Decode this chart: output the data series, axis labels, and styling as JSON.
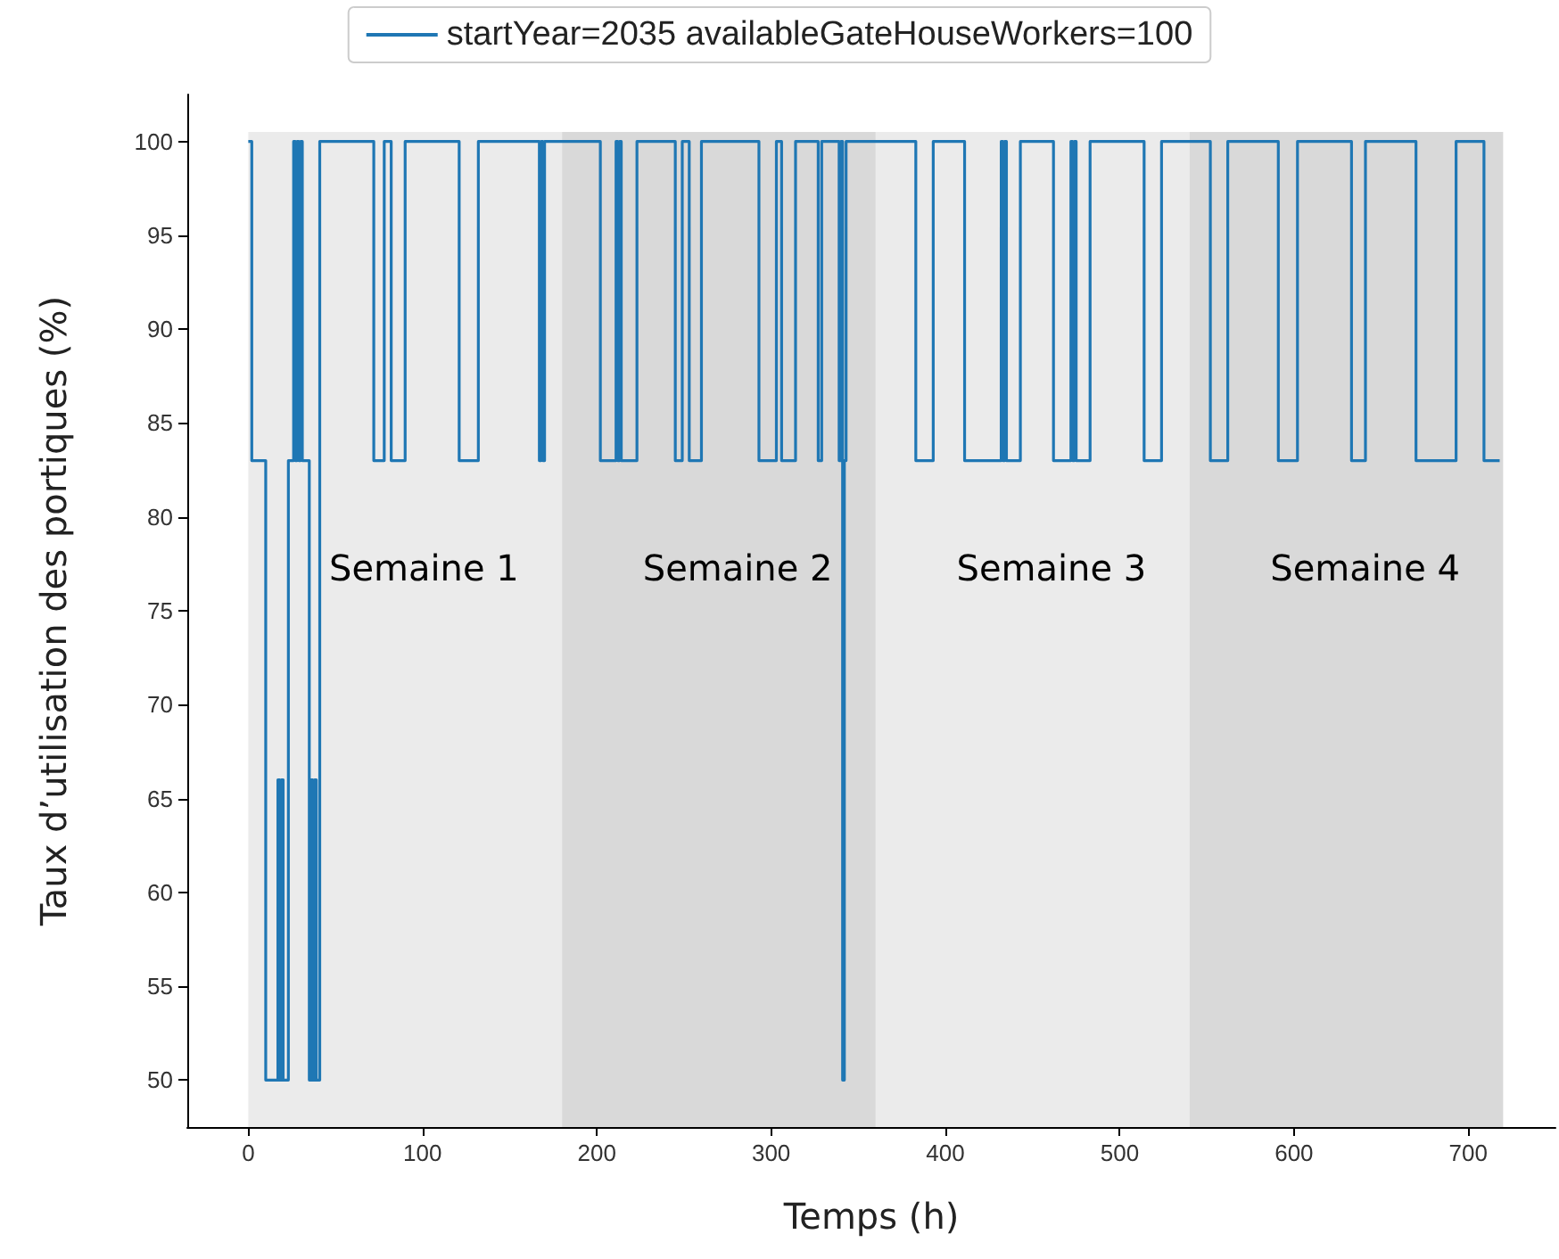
{
  "chart_data": {
    "type": "step",
    "xlabel": "Temps (h)",
    "ylabel": "Taux d’utilisation des portiques (%)",
    "series": [
      {
        "name": "startYear=2035 availableGateHouseWorkers=100",
        "color": "#1f77b4",
        "x": [
          0,
          2,
          10,
          17,
          18,
          19,
          20,
          23,
          26,
          27,
          28,
          29,
          30,
          31,
          35,
          36,
          37,
          38,
          39,
          41,
          72,
          78,
          82,
          90,
          121,
          132,
          167,
          168,
          169,
          170,
          202,
          211,
          212,
          213,
          214,
          223,
          245,
          249,
          253,
          260,
          293,
          303,
          306,
          314,
          327,
          329,
          339,
          340,
          341,
          342,
          343,
          383,
          393,
          411,
          432,
          433,
          434,
          435,
          443,
          462,
          472,
          473,
          474,
          475,
          483,
          514,
          524,
          552,
          562,
          591,
          602,
          633,
          641,
          670,
          693,
          709,
          718
        ],
        "values": [
          100,
          83,
          50,
          66,
          50,
          66,
          50,
          83,
          100,
          83,
          100,
          83,
          100,
          83,
          50,
          66,
          50,
          66,
          50,
          100,
          83,
          100,
          83,
          100,
          83,
          100,
          83,
          100,
          83,
          100,
          83,
          100,
          83,
          100,
          83,
          100,
          83,
          100,
          83,
          100,
          83,
          100,
          83,
          100,
          83,
          100,
          83,
          100,
          50,
          83,
          100,
          83,
          100,
          83,
          100,
          83,
          100,
          83,
          100,
          83,
          100,
          83,
          100,
          83,
          100,
          83,
          100,
          83,
          100,
          83,
          100,
          83,
          100,
          83,
          100,
          83,
          83
        ]
      }
    ],
    "xlim": [
      -35,
      750
    ],
    "ylim": [
      47.5,
      102.5
    ],
    "xticks": [
      0,
      100,
      200,
      300,
      400,
      500,
      600,
      700
    ],
    "yticks": [
      50,
      55,
      60,
      65,
      70,
      75,
      80,
      85,
      90,
      95,
      100
    ],
    "bands": [
      {
        "axis": "x",
        "from": 0,
        "to": 180,
        "label": "Semaine 1",
        "color": "#ebebeb"
      },
      {
        "axis": "x",
        "from": 180,
        "to": 360,
        "label": "Semaine 2",
        "color": "#d9d9d9"
      },
      {
        "axis": "x",
        "from": 360,
        "to": 540,
        "label": "Semaine 3",
        "color": "#ebebeb"
      },
      {
        "axis": "x",
        "from": 540,
        "to": 720,
        "label": "Semaine 4",
        "color": "#d9d9d9"
      }
    ],
    "grid": false,
    "legend": "top",
    "marker": "none",
    "line_style": "solid"
  }
}
